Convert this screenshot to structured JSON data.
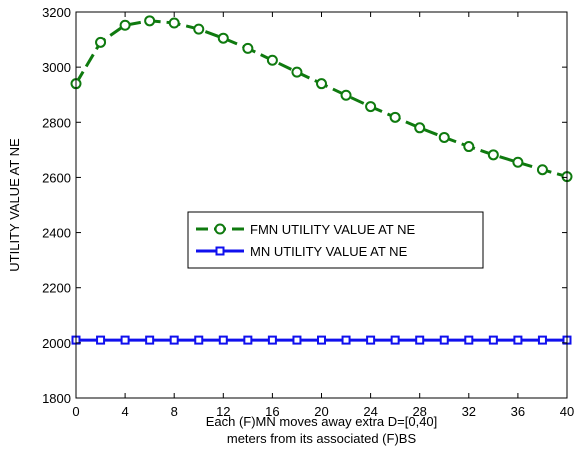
{
  "chart_data": {
    "type": "line",
    "x": [
      0,
      2,
      4,
      6,
      8,
      10,
      12,
      14,
      16,
      18,
      20,
      22,
      24,
      26,
      28,
      30,
      32,
      34,
      36,
      38,
      40
    ],
    "series": [
      {
        "name": "FMN UTILITY VALUE AT NE",
        "color": "#0f7a0f",
        "line_style": "dashed",
        "marker": "circle",
        "values": [
          2940,
          3090,
          3152,
          3168,
          3160,
          3138,
          3105,
          3068,
          3025,
          2982,
          2940,
          2898,
          2857,
          2818,
          2780,
          2745,
          2712,
          2682,
          2655,
          2628,
          2603
        ]
      },
      {
        "name": "MN UTILITY VALUE AT NE",
        "color": "#1010ee",
        "line_style": "solid",
        "marker": "square",
        "values": [
          2010,
          2010,
          2010,
          2010,
          2010,
          2010,
          2010,
          2010,
          2010,
          2010,
          2010,
          2010,
          2010,
          2010,
          2010,
          2010,
          2010,
          2010,
          2010,
          2010,
          2010
        ]
      }
    ],
    "xlim": [
      0,
      40
    ],
    "ylim": [
      1800,
      3200
    ],
    "xticks": [
      "0",
      "4",
      "8",
      "12",
      "16",
      "20",
      "24",
      "28",
      "32",
      "36",
      "40"
    ],
    "yticks": [
      "1800",
      "2000",
      "2200",
      "2400",
      "2600",
      "2800",
      "3000",
      "3200"
    ],
    "xlabel": [
      "Each (F)MN moves away extra D=[0,40]",
      "meters from its associated (F)BS"
    ],
    "ylabel": "UTILITY VALUE AT NE",
    "title": "",
    "grid": false,
    "legend_position": "center-right"
  }
}
